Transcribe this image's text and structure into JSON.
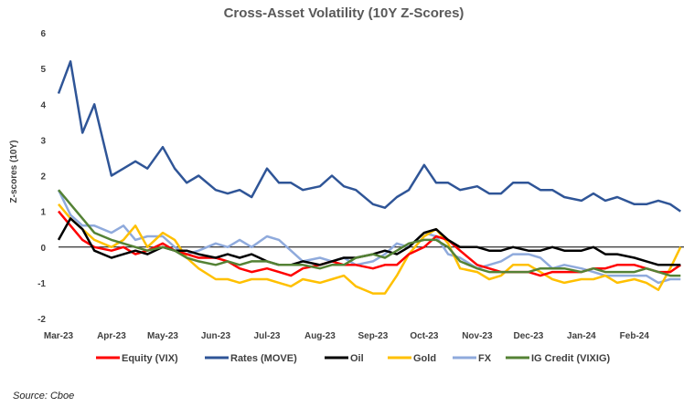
{
  "source": "Source: Cboe",
  "chart_data": {
    "type": "line",
    "title": "Cross-Asset Volatility (10Y Z-Scores)",
    "ylabel": "Z-scores (10Y)",
    "xlabel": "",
    "ylim": [
      -2,
      6
    ],
    "yticks": [
      -2,
      -1,
      0,
      1,
      2,
      3,
      4,
      5,
      6
    ],
    "x_ticks": [
      "Mar-23",
      "Apr-23",
      "May-23",
      "Jun-23",
      "Jul-23",
      "Aug-23",
      "Sep-23",
      "Oct-23",
      "Nov-23",
      "Dec-23",
      "Jan-24",
      "Feb-24"
    ],
    "zero_line": true,
    "grid": false,
    "legend_position": "bottom",
    "x": [
      "2023-03-01",
      "2023-03-08",
      "2023-03-15",
      "2023-03-22",
      "2023-04-01",
      "2023-04-08",
      "2023-04-15",
      "2023-04-22",
      "2023-05-01",
      "2023-05-08",
      "2023-05-15",
      "2023-05-22",
      "2023-06-01",
      "2023-06-08",
      "2023-06-15",
      "2023-06-22",
      "2023-07-01",
      "2023-07-08",
      "2023-07-15",
      "2023-07-22",
      "2023-08-01",
      "2023-08-08",
      "2023-08-15",
      "2023-08-22",
      "2023-09-01",
      "2023-09-08",
      "2023-09-15",
      "2023-09-22",
      "2023-10-01",
      "2023-10-08",
      "2023-10-15",
      "2023-10-22",
      "2023-11-01",
      "2023-11-08",
      "2023-11-15",
      "2023-11-22",
      "2023-12-01",
      "2023-12-08",
      "2023-12-15",
      "2023-12-22",
      "2024-01-01",
      "2024-01-08",
      "2024-01-15",
      "2024-01-22",
      "2024-02-01",
      "2024-02-08",
      "2024-02-15",
      "2024-02-22",
      "2024-02-28"
    ],
    "series": [
      {
        "name": "Equity (VIX)",
        "color": "#ff0000",
        "values": [
          1.0,
          0.6,
          0.2,
          0.0,
          -0.1,
          0.0,
          -0.2,
          -0.1,
          0.1,
          -0.1,
          -0.2,
          -0.3,
          -0.3,
          -0.4,
          -0.6,
          -0.7,
          -0.6,
          -0.7,
          -0.8,
          -0.6,
          -0.5,
          -0.4,
          -0.5,
          -0.5,
          -0.6,
          -0.5,
          -0.5,
          -0.2,
          0.0,
          0.3,
          0.2,
          -0.1,
          -0.5,
          -0.6,
          -0.7,
          -0.7,
          -0.7,
          -0.8,
          -0.7,
          -0.7,
          -0.7,
          -0.6,
          -0.6,
          -0.5,
          -0.5,
          -0.6,
          -0.7,
          -0.7,
          -0.5
        ]
      },
      {
        "name": "Rates (MOVE)",
        "color": "#2f5597",
        "values": [
          4.3,
          5.2,
          3.2,
          4.0,
          2.0,
          2.2,
          2.4,
          2.2,
          2.8,
          2.2,
          1.8,
          2.0,
          1.6,
          1.5,
          1.6,
          1.4,
          2.2,
          1.8,
          1.8,
          1.6,
          1.7,
          2.0,
          1.7,
          1.6,
          1.2,
          1.1,
          1.4,
          1.6,
          2.3,
          1.8,
          1.8,
          1.6,
          1.7,
          1.5,
          1.5,
          1.8,
          1.8,
          1.6,
          1.6,
          1.4,
          1.3,
          1.5,
          1.3,
          1.4,
          1.2,
          1.2,
          1.3,
          1.2,
          1.0
        ]
      },
      {
        "name": "Oil",
        "color": "#000000",
        "values": [
          0.2,
          0.8,
          0.5,
          -0.1,
          -0.3,
          -0.2,
          -0.1,
          -0.2,
          0.0,
          -0.1,
          -0.1,
          -0.2,
          -0.3,
          -0.2,
          -0.3,
          -0.2,
          -0.4,
          -0.5,
          -0.5,
          -0.4,
          -0.5,
          -0.4,
          -0.3,
          -0.3,
          -0.2,
          -0.1,
          -0.2,
          0.0,
          0.4,
          0.5,
          0.2,
          0.0,
          0.0,
          -0.1,
          -0.1,
          0.0,
          -0.1,
          -0.1,
          0.0,
          -0.1,
          -0.1,
          0.0,
          -0.2,
          -0.2,
          -0.3,
          -0.4,
          -0.5,
          -0.5,
          -0.5
        ]
      },
      {
        "name": "Gold",
        "color": "#ffc000",
        "values": [
          1.2,
          0.8,
          0.5,
          0.2,
          0.0,
          0.2,
          0.6,
          0.0,
          0.4,
          0.2,
          -0.3,
          -0.6,
          -0.9,
          -0.9,
          -1.0,
          -0.9,
          -0.9,
          -1.0,
          -1.1,
          -0.9,
          -1.0,
          -0.9,
          -0.8,
          -1.1,
          -1.3,
          -1.3,
          -0.8,
          -0.2,
          0.3,
          0.5,
          0.1,
          -0.6,
          -0.7,
          -0.9,
          -0.8,
          -0.5,
          -0.5,
          -0.7,
          -0.9,
          -1.0,
          -0.9,
          -0.9,
          -0.8,
          -1.0,
          -0.9,
          -1.0,
          -1.2,
          -0.6,
          0.0
        ]
      },
      {
        "name": "FX",
        "color": "#8faadc",
        "values": [
          1.6,
          0.9,
          0.6,
          0.6,
          0.4,
          0.6,
          0.2,
          0.3,
          0.3,
          0.0,
          -0.2,
          -0.1,
          0.1,
          0.0,
          0.2,
          0.0,
          0.3,
          0.2,
          -0.1,
          -0.4,
          -0.3,
          -0.4,
          -0.3,
          -0.5,
          -0.4,
          -0.2,
          0.1,
          0.0,
          0.4,
          0.3,
          -0.2,
          -0.3,
          -0.6,
          -0.5,
          -0.4,
          -0.2,
          -0.2,
          -0.3,
          -0.6,
          -0.5,
          -0.6,
          -0.7,
          -0.8,
          -0.8,
          -0.8,
          -0.8,
          -1.0,
          -0.9,
          -0.9
        ]
      },
      {
        "name": "IG Credit (VIXIG)",
        "color": "#548235",
        "values": [
          1.6,
          1.2,
          0.8,
          0.4,
          0.2,
          0.1,
          0.0,
          -0.1,
          0.0,
          -0.1,
          -0.3,
          -0.4,
          -0.5,
          -0.4,
          -0.5,
          -0.4,
          -0.4,
          -0.5,
          -0.5,
          -0.5,
          -0.6,
          -0.5,
          -0.5,
          -0.3,
          -0.2,
          -0.3,
          -0.1,
          0.1,
          0.2,
          0.2,
          0.0,
          -0.4,
          -0.6,
          -0.7,
          -0.7,
          -0.7,
          -0.7,
          -0.6,
          -0.6,
          -0.6,
          -0.7,
          -0.6,
          -0.7,
          -0.7,
          -0.7,
          -0.6,
          -0.7,
          -0.8,
          -0.8
        ]
      }
    ]
  }
}
